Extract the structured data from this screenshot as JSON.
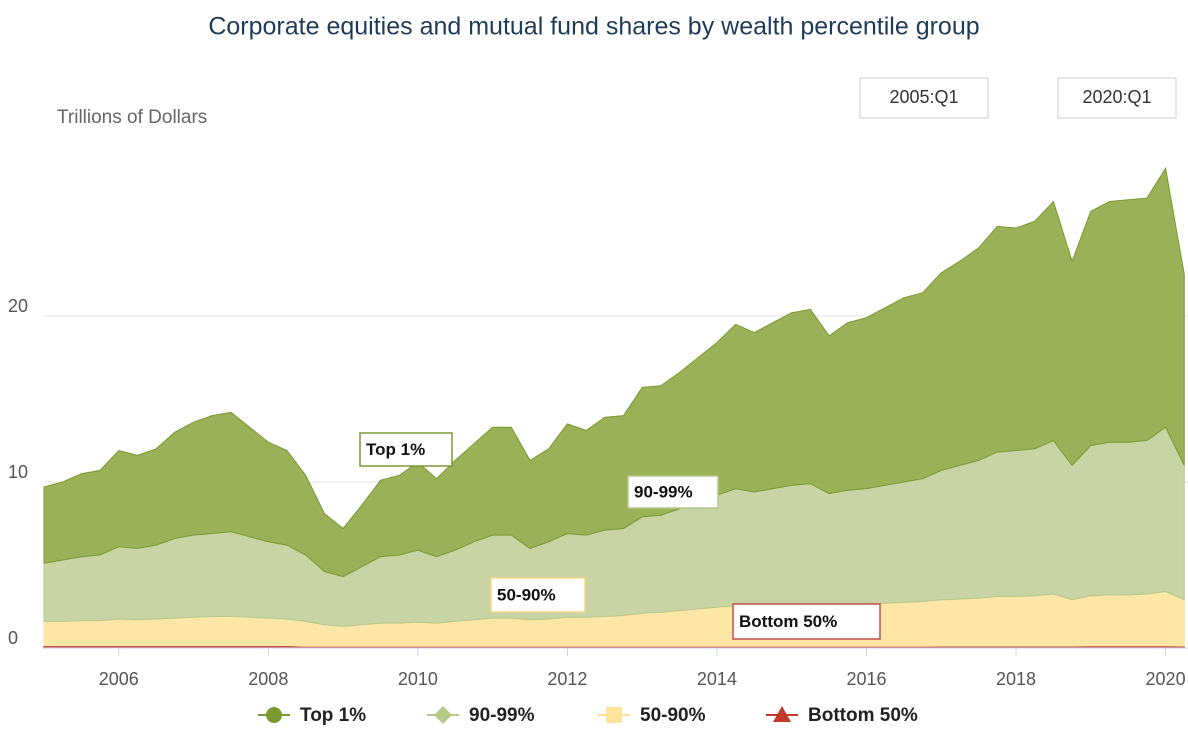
{
  "chart_data": {
    "type": "stacked_area",
    "title": "Corporate equities and mutual fund shares by wealth percentile group",
    "y_label": "Trillions of Dollars",
    "range_selector": [
      "2005:Q1",
      "2020:Q1"
    ],
    "annotations": [
      "Top 1%",
      "90-99%",
      "50-90%",
      "Bottom 50%"
    ],
    "x": [
      2005,
      2005.25,
      2005.5,
      2005.75,
      2006,
      2006.25,
      2006.5,
      2006.75,
      2007,
      2007.25,
      2007.5,
      2007.75,
      2008,
      2008.25,
      2008.5,
      2008.75,
      2009,
      2009.25,
      2009.5,
      2009.75,
      2010,
      2010.25,
      2010.5,
      2010.75,
      2011,
      2011.25,
      2011.5,
      2011.75,
      2012,
      2012.25,
      2012.5,
      2012.75,
      2013,
      2013.25,
      2013.5,
      2013.75,
      2014,
      2014.25,
      2014.5,
      2014.75,
      2015,
      2015.25,
      2015.5,
      2015.75,
      2016,
      2016.25,
      2016.5,
      2016.75,
      2017,
      2017.25,
      2017.5,
      2017.75,
      2018,
      2018.25,
      2018.5,
      2018.75,
      2019,
      2019.25,
      2019.5,
      2019.75,
      2020,
      2020.25
    ],
    "xlim": [
      2005,
      2020.3
    ],
    "xticks": [
      2006,
      2008,
      2010,
      2012,
      2014,
      2016,
      2018,
      2020
    ],
    "ylim": [
      0,
      30
    ],
    "yticks": [
      0,
      10,
      20
    ],
    "grid": true,
    "legend": "bottom",
    "series": [
      {
        "name": "Top 1%",
        "color": "#9bb158",
        "marker": "circle",
        "marker_color": "#7a9a31",
        "values": [
          4.6,
          4.7,
          5.0,
          5.1,
          5.8,
          5.6,
          5.8,
          6.4,
          6.8,
          7.1,
          7.2,
          6.6,
          6.0,
          5.7,
          4.8,
          3.5,
          2.9,
          3.7,
          4.6,
          4.8,
          5.3,
          4.7,
          5.4,
          5.9,
          6.5,
          6.5,
          5.3,
          5.6,
          6.6,
          6.3,
          6.8,
          6.8,
          7.8,
          7.8,
          8.2,
          8.7,
          9.2,
          9.9,
          9.6,
          10.0,
          10.4,
          10.5,
          9.5,
          10.1,
          10.3,
          10.7,
          11.1,
          11.2,
          11.9,
          12.3,
          12.8,
          13.6,
          13.4,
          13.7,
          14.4,
          12.3,
          14.1,
          14.5,
          14.6,
          14.6,
          15.6,
          11.5
        ]
      },
      {
        "name": "90-99%",
        "color": "#c8d4a3",
        "marker": "diamond",
        "marker_color": "#b4c98a",
        "values": [
          3.5,
          3.7,
          3.85,
          3.95,
          4.35,
          4.3,
          4.45,
          4.8,
          4.95,
          5.0,
          5.1,
          4.85,
          4.6,
          4.45,
          4.0,
          3.2,
          3.0,
          3.5,
          4.0,
          4.1,
          4.35,
          4.0,
          4.3,
          4.7,
          5.0,
          5.0,
          4.3,
          4.65,
          5.05,
          4.95,
          5.2,
          5.25,
          5.8,
          5.85,
          6.15,
          6.45,
          6.75,
          7.05,
          6.9,
          7.05,
          7.2,
          7.25,
          6.75,
          6.9,
          6.95,
          7.1,
          7.25,
          7.4,
          7.8,
          8.05,
          8.3,
          8.7,
          8.8,
          8.85,
          9.25,
          8.1,
          9.05,
          9.2,
          9.2,
          9.25,
          9.9,
          8.1
        ]
      },
      {
        "name": "50-90%",
        "color": "#fde6a6",
        "marker": "square",
        "marker_color": "#fde49a",
        "values": [
          1.45,
          1.45,
          1.5,
          1.5,
          1.6,
          1.55,
          1.6,
          1.65,
          1.7,
          1.75,
          1.75,
          1.7,
          1.65,
          1.6,
          1.5,
          1.3,
          1.2,
          1.3,
          1.4,
          1.4,
          1.45,
          1.4,
          1.5,
          1.6,
          1.7,
          1.7,
          1.6,
          1.65,
          1.75,
          1.75,
          1.8,
          1.85,
          2.0,
          2.05,
          2.15,
          2.25,
          2.35,
          2.45,
          2.4,
          2.45,
          2.5,
          2.55,
          2.45,
          2.5,
          2.55,
          2.6,
          2.65,
          2.7,
          2.78,
          2.83,
          2.88,
          2.98,
          2.98,
          3.03,
          3.13,
          2.78,
          3.02,
          3.07,
          3.07,
          3.12,
          3.26,
          2.78
        ]
      },
      {
        "name": "Bottom 50%",
        "color": "#c0504d",
        "marker": "triangle",
        "marker_color": "#c0392b",
        "values": [
          0.15,
          0.15,
          0.15,
          0.15,
          0.15,
          0.15,
          0.15,
          0.15,
          0.15,
          0.15,
          0.15,
          0.15,
          0.15,
          0.15,
          0.1,
          0.1,
          0.1,
          0.1,
          0.1,
          0.1,
          0.1,
          0.1,
          0.1,
          0.1,
          0.1,
          0.1,
          0.1,
          0.1,
          0.1,
          0.1,
          0.1,
          0.1,
          0.1,
          0.1,
          0.1,
          0.1,
          0.1,
          0.1,
          0.1,
          0.1,
          0.1,
          0.1,
          0.1,
          0.1,
          0.1,
          0.1,
          0.1,
          0.1,
          0.12,
          0.12,
          0.12,
          0.12,
          0.12,
          0.12,
          0.12,
          0.12,
          0.13,
          0.13,
          0.13,
          0.13,
          0.14,
          0.12
        ]
      }
    ]
  }
}
